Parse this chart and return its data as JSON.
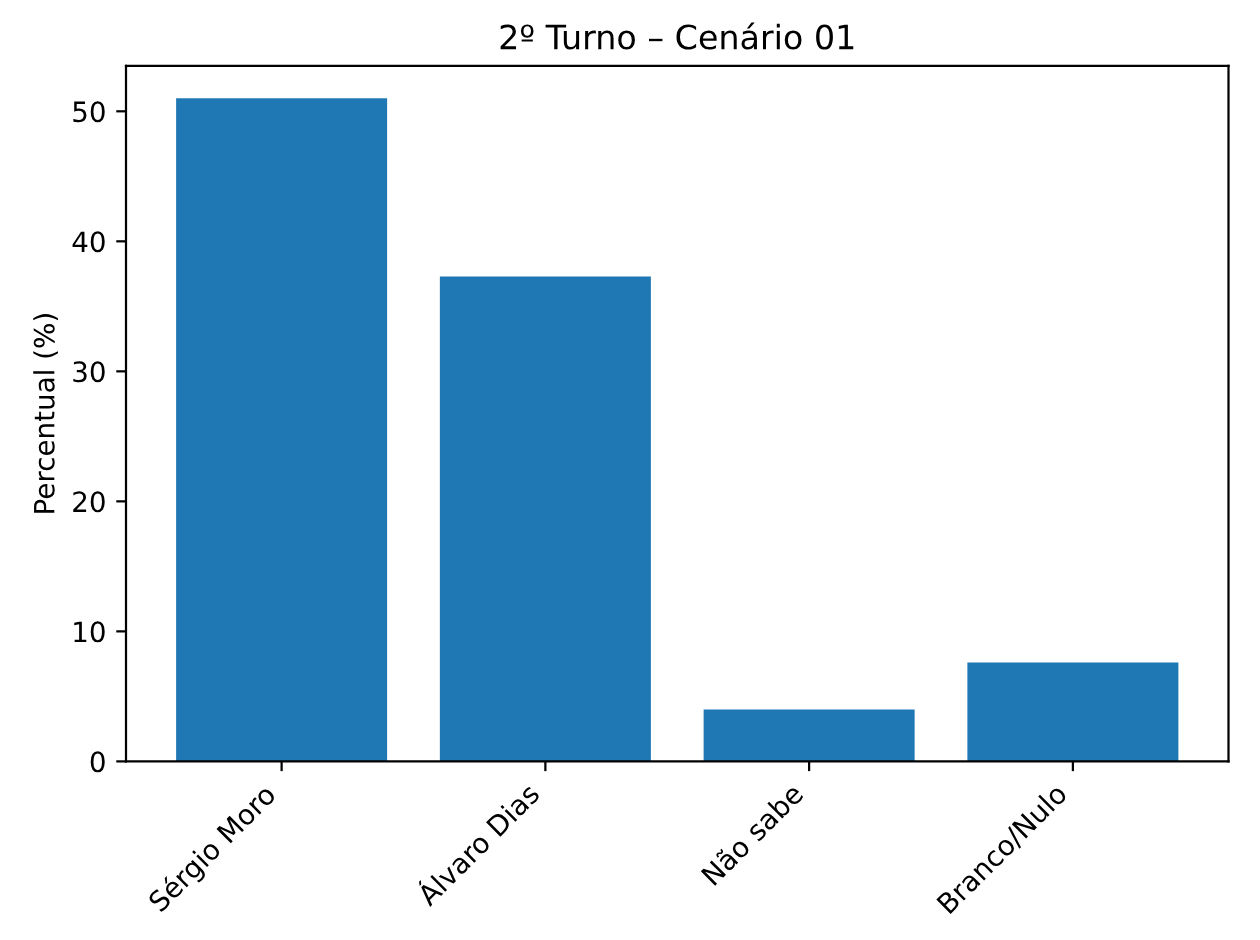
{
  "chart_data": {
    "type": "bar",
    "title": "2º Turno – Cenário 01",
    "ylabel": "Percentual (%)",
    "categories": [
      "Sérgio Moro",
      "Álvaro Dias",
      "Não sabe",
      "Branco/Nulo"
    ],
    "values": [
      51.0,
      37.3,
      4.0,
      7.6
    ],
    "color": "#1f77b4",
    "ylim": [
      0,
      53.5
    ],
    "yticks": [
      0,
      10,
      20,
      30,
      40,
      50
    ],
    "grid": false,
    "legend": false
  }
}
